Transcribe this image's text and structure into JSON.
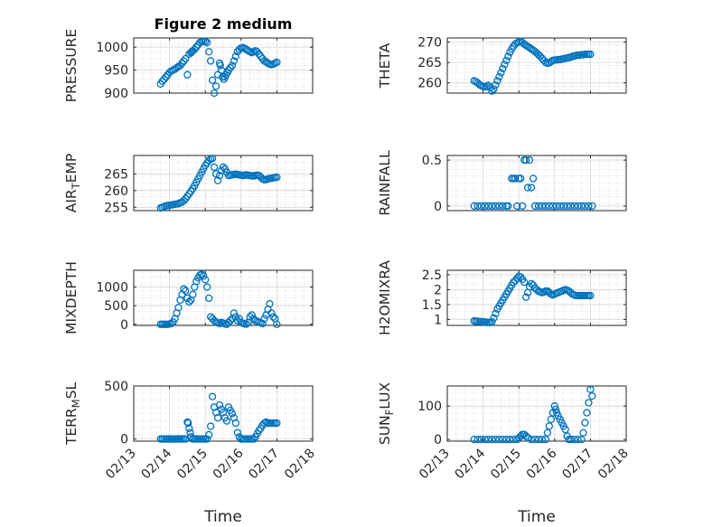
{
  "figure_title": "Figure 2 medium",
  "colors": {
    "marker": "#0072bd",
    "axis": "#262626",
    "grid": "#c8c8c8"
  },
  "chart_data": [
    {
      "type": "scatter",
      "ylabel": "PRESSURE",
      "xlabel": "",
      "title": "Figure 2 medium",
      "xlim": [
        0,
        5
      ],
      "ylim": [
        900,
        1020
      ],
      "yticks": [
        900,
        950,
        1000
      ],
      "ytick_labels": [
        "900",
        "950",
        "1000"
      ],
      "grid": true,
      "x": [
        0.75,
        0.8,
        0.85,
        0.9,
        0.95,
        1.0,
        1.05,
        1.1,
        1.15,
        1.2,
        1.25,
        1.3,
        1.35,
        1.4,
        1.45,
        1.5,
        1.55,
        1.6,
        1.62,
        1.65,
        1.7,
        1.75,
        1.8,
        1.85,
        1.9,
        1.95,
        2.0,
        2.05,
        2.1,
        2.15,
        2.2,
        2.25,
        2.3,
        2.35,
        2.4,
        2.42,
        2.45,
        2.48,
        2.52,
        2.55,
        2.58,
        2.62,
        2.65,
        2.7,
        2.75,
        2.8,
        2.85,
        2.9,
        2.95,
        3.0,
        3.05,
        3.1,
        3.15,
        3.2,
        3.25,
        3.3,
        3.35,
        3.4,
        3.45,
        3.5,
        3.55,
        3.6,
        3.65,
        3.7,
        3.75,
        3.8,
        3.85,
        3.9,
        3.95,
        4.0
      ],
      "y": [
        920,
        926,
        930,
        935,
        940,
        945,
        948,
        950,
        952,
        955,
        958,
        960,
        965,
        970,
        975,
        940,
        985,
        988,
        990,
        992,
        995,
        1000,
        1005,
        1010,
        1012,
        1013,
        1012,
        1010,
        990,
        970,
        928,
        900,
        915,
        940,
        965,
        960,
        950,
        935,
        930,
        935,
        940,
        945,
        950,
        955,
        960,
        970,
        980,
        990,
        995,
        998,
        999,
        997,
        995,
        992,
        990,
        988,
        990,
        992,
        990,
        985,
        980,
        975,
        970,
        968,
        965,
        963,
        962,
        963,
        965,
        967
      ]
    },
    {
      "type": "scatter",
      "ylabel": "THETA",
      "xlabel": "",
      "xlim": [
        0,
        5
      ],
      "ylim": [
        257.5,
        271
      ],
      "yticks": [
        260,
        265,
        270
      ],
      "ytick_labels": [
        "260",
        "265",
        "270"
      ],
      "grid": true,
      "x": [
        0.75,
        0.8,
        0.85,
        0.9,
        0.95,
        1.0,
        1.05,
        1.1,
        1.15,
        1.2,
        1.25,
        1.3,
        1.35,
        1.4,
        1.45,
        1.5,
        1.55,
        1.6,
        1.65,
        1.7,
        1.75,
        1.8,
        1.85,
        1.9,
        1.95,
        2.0,
        2.05,
        2.1,
        2.15,
        2.2,
        2.25,
        2.3,
        2.35,
        2.4,
        2.45,
        2.5,
        2.55,
        2.6,
        2.65,
        2.7,
        2.75,
        2.8,
        2.85,
        2.9,
        2.95,
        3.0,
        3.05,
        3.1,
        3.15,
        3.2,
        3.25,
        3.3,
        3.35,
        3.4,
        3.45,
        3.5,
        3.55,
        3.6,
        3.65,
        3.7,
        3.75,
        3.8,
        3.85,
        3.9,
        3.95,
        4.0
      ],
      "y": [
        260.5,
        260.3,
        260,
        259.6,
        259.3,
        259.1,
        259,
        259.2,
        259.4,
        258.8,
        258,
        258.5,
        259.5,
        260.5,
        261.5,
        262.5,
        263.5,
        264.5,
        265.5,
        266.5,
        267.5,
        268.3,
        269,
        269.5,
        269.8,
        270,
        270.2,
        269.9,
        269.5,
        269.2,
        268.9,
        268.6,
        268.3,
        268,
        267.7,
        267.3,
        266.9,
        266.5,
        266,
        265.5,
        265,
        264.8,
        264.9,
        265.2,
        265.5,
        265.6,
        265.6,
        265.7,
        265.7,
        265.8,
        265.9,
        266,
        266.1,
        266.2,
        266.3,
        266.5,
        266.6,
        266.7,
        266.8,
        266.8,
        266.9,
        266.9,
        267,
        267,
        267,
        267
      ]
    },
    {
      "type": "scatter",
      "ylabel": "AIR_TEMP",
      "xlabel": "",
      "xlim": [
        0,
        5
      ],
      "ylim": [
        254,
        270.5
      ],
      "yticks": [
        255,
        260,
        265
      ],
      "ytick_labels": [
        "255",
        "260",
        "265"
      ],
      "grid": true,
      "x": [
        0.75,
        0.8,
        0.85,
        0.9,
        0.95,
        1.0,
        1.05,
        1.1,
        1.15,
        1.2,
        1.25,
        1.3,
        1.35,
        1.4,
        1.45,
        1.5,
        1.55,
        1.6,
        1.65,
        1.7,
        1.75,
        1.8,
        1.85,
        1.9,
        1.95,
        2.0,
        2.05,
        2.1,
        2.15,
        2.2,
        2.25,
        2.3,
        2.35,
        2.4,
        2.45,
        2.5,
        2.55,
        2.6,
        2.65,
        2.7,
        2.75,
        2.8,
        2.85,
        2.9,
        2.95,
        3.0,
        3.05,
        3.1,
        3.15,
        3.2,
        3.25,
        3.3,
        3.35,
        3.4,
        3.45,
        3.5,
        3.55,
        3.6,
        3.65,
        3.7,
        3.75,
        3.8,
        3.85,
        3.9,
        3.95,
        4.0
      ],
      "y": [
        254.8,
        255,
        255.2,
        255.4,
        255.5,
        255.6,
        255.7,
        255.8,
        255.9,
        256,
        256.1,
        256.3,
        256.6,
        257,
        257.6,
        258.3,
        259,
        259.8,
        260.6,
        261.5,
        262.5,
        263.5,
        264.5,
        265.5,
        266.5,
        267.5,
        268.3,
        269,
        269.4,
        269.6,
        267,
        265,
        263,
        264.5,
        266,
        267,
        266.5,
        265.5,
        264.5,
        264.6,
        264.7,
        264.8,
        264.9,
        264.8,
        264.7,
        264.6,
        264.5,
        264.6,
        264.7,
        264.6,
        264.5,
        264.4,
        264.4,
        264.5,
        264.6,
        264.5,
        264,
        263.5,
        263.2,
        263.3,
        263.5,
        263.6,
        263.7,
        263.8,
        263.9,
        264
      ]
    },
    {
      "type": "scatter",
      "ylabel": "RAINFALL",
      "xlabel": "",
      "xlim": [
        0,
        5
      ],
      "ylim": [
        -0.05,
        0.55
      ],
      "yticks": [
        0,
        0.5
      ],
      "ytick_labels": [
        "0",
        "0.5"
      ],
      "grid": true,
      "x": [
        0.75,
        0.85,
        0.95,
        1.05,
        1.15,
        1.25,
        1.35,
        1.45,
        1.55,
        1.65,
        1.7,
        1.8,
        1.85,
        1.9,
        1.95,
        2.0,
        2.05,
        2.1,
        2.15,
        2.2,
        2.25,
        2.3,
        2.35,
        2.4,
        2.45,
        2.55,
        2.65,
        2.75,
        2.85,
        2.95,
        3.05,
        3.15,
        3.25,
        3.35,
        3.45,
        3.55,
        3.65,
        3.75,
        3.85,
        3.95,
        4.05
      ],
      "y": [
        0,
        0,
        0,
        0,
        0,
        0,
        0,
        0,
        0,
        0,
        0,
        0.3,
        0.3,
        0.3,
        0,
        0.3,
        0.3,
        0,
        0.5,
        0.5,
        0.2,
        0.5,
        0.2,
        0.3,
        0,
        0,
        0,
        0,
        0,
        0,
        0,
        0,
        0,
        0,
        0,
        0,
        0,
        0,
        0,
        0,
        0
      ]
    },
    {
      "type": "scatter",
      "ylabel": "MIXDEPTH",
      "xlabel": "",
      "xlim": [
        0,
        5
      ],
      "ylim": [
        -30,
        1450
      ],
      "yticks": [
        0,
        500,
        1000
      ],
      "ytick_labels": [
        "0",
        "500",
        "1000"
      ],
      "grid": true,
      "x": [
        0.75,
        0.8,
        0.85,
        0.9,
        0.95,
        1.0,
        1.05,
        1.1,
        1.15,
        1.2,
        1.25,
        1.3,
        1.35,
        1.4,
        1.45,
        1.5,
        1.55,
        1.6,
        1.65,
        1.7,
        1.75,
        1.8,
        1.85,
        1.9,
        1.95,
        2.0,
        2.05,
        2.1,
        2.15,
        2.2,
        2.25,
        2.3,
        2.35,
        2.4,
        2.45,
        2.5,
        2.55,
        2.6,
        2.65,
        2.7,
        2.75,
        2.8,
        2.85,
        2.9,
        2.95,
        3.0,
        3.05,
        3.1,
        3.15,
        3.2,
        3.25,
        3.3,
        3.35,
        3.4,
        3.45,
        3.5,
        3.55,
        3.6,
        3.65,
        3.7,
        3.75,
        3.8,
        3.85,
        3.9,
        3.95,
        4.0
      ],
      "y": [
        0,
        0,
        0,
        0,
        0,
        10,
        20,
        60,
        150,
        300,
        450,
        650,
        800,
        950,
        900,
        700,
        600,
        650,
        800,
        1000,
        1150,
        1250,
        1320,
        1340,
        1300,
        1200,
        1000,
        700,
        200,
        150,
        100,
        60,
        40,
        20,
        50,
        30,
        10,
        0,
        50,
        100,
        150,
        300,
        200,
        100,
        150,
        50,
        30,
        10,
        5,
        50,
        200,
        250,
        150,
        100,
        80,
        60,
        40,
        20,
        150,
        250,
        400,
        550,
        300,
        200,
        150,
        0
      ]
    },
    {
      "type": "scatter",
      "ylabel": "H2OMIXRA",
      "xlabel": "",
      "xlim": [
        0,
        5
      ],
      "ylim": [
        0.8,
        2.65
      ],
      "yticks": [
        1,
        1.5,
        2,
        2.5
      ],
      "ytick_labels": [
        "1",
        "1.5",
        "2",
        "2.5"
      ],
      "grid": true,
      "x": [
        0.75,
        0.8,
        0.85,
        0.9,
        0.95,
        1.0,
        1.05,
        1.1,
        1.15,
        1.2,
        1.25,
        1.3,
        1.35,
        1.4,
        1.45,
        1.5,
        1.55,
        1.6,
        1.65,
        1.7,
        1.75,
        1.8,
        1.85,
        1.9,
        1.95,
        2.0,
        2.05,
        2.1,
        2.15,
        2.2,
        2.25,
        2.3,
        2.35,
        2.4,
        2.45,
        2.5,
        2.55,
        2.6,
        2.65,
        2.7,
        2.75,
        2.8,
        2.85,
        2.9,
        2.95,
        3.0,
        3.05,
        3.1,
        3.15,
        3.2,
        3.25,
        3.3,
        3.35,
        3.4,
        3.45,
        3.5,
        3.55,
        3.6,
        3.65,
        3.7,
        3.75,
        3.8,
        3.85,
        3.9,
        3.95,
        4.0
      ],
      "y": [
        0.95,
        0.94,
        0.94,
        0.93,
        0.93,
        0.92,
        0.92,
        0.9,
        0.9,
        0.9,
        0.92,
        1.05,
        1.2,
        1.35,
        1.45,
        1.55,
        1.65,
        1.75,
        1.85,
        1.95,
        2.05,
        2.15,
        2.25,
        2.3,
        2.38,
        2.45,
        2.42,
        2.35,
        2.25,
        1.75,
        1.9,
        2.1,
        2.2,
        2.15,
        2.05,
        2.0,
        1.95,
        1.92,
        1.9,
        1.92,
        1.95,
        1.95,
        1.9,
        1.85,
        1.82,
        1.85,
        1.88,
        1.9,
        1.93,
        1.95,
        1.98,
        2.0,
        1.98,
        1.95,
        1.9,
        1.85,
        1.82,
        1.8,
        1.8,
        1.8,
        1.8,
        1.8,
        1.8,
        1.8,
        1.8,
        1.8
      ]
    },
    {
      "type": "scatter",
      "ylabel": "TERR_MSL",
      "xlabel": "Time",
      "xlim": [
        0,
        5
      ],
      "ylim": [
        -20,
        500
      ],
      "yticks": [
        0,
        500
      ],
      "ytick_labels": [
        "0",
        "500"
      ],
      "xticks": [
        0,
        1,
        2,
        3,
        4,
        5
      ],
      "xtick_labels": [
        "02/13",
        "02/14",
        "02/15",
        "02/16",
        "02/17",
        "02/18"
      ],
      "grid": true,
      "x": [
        0.75,
        0.8,
        0.85,
        0.9,
        0.95,
        1.0,
        1.05,
        1.1,
        1.15,
        1.2,
        1.25,
        1.3,
        1.35,
        1.4,
        1.45,
        1.5,
        1.52,
        1.55,
        1.58,
        1.6,
        1.65,
        1.7,
        1.75,
        1.8,
        1.85,
        1.9,
        1.95,
        2.0,
        2.05,
        2.1,
        2.15,
        2.2,
        2.25,
        2.3,
        2.35,
        2.4,
        2.45,
        2.5,
        2.55,
        2.6,
        2.65,
        2.7,
        2.75,
        2.8,
        2.85,
        2.9,
        2.95,
        3.0,
        3.05,
        3.1,
        3.15,
        3.2,
        3.25,
        3.3,
        3.35,
        3.4,
        3.45,
        3.5,
        3.55,
        3.6,
        3.65,
        3.7,
        3.75,
        3.8,
        3.85,
        3.9,
        3.95,
        4.0
      ],
      "y": [
        0,
        0,
        0,
        0,
        0,
        0,
        0,
        0,
        0,
        0,
        0,
        0,
        0,
        0,
        0,
        160,
        150,
        100,
        60,
        20,
        0,
        0,
        0,
        0,
        0,
        0,
        0,
        0,
        0,
        40,
        120,
        400,
        300,
        250,
        200,
        320,
        280,
        250,
        200,
        170,
        300,
        270,
        240,
        200,
        150,
        60,
        20,
        0,
        0,
        0,
        0,
        0,
        0,
        0,
        0,
        20,
        50,
        80,
        100,
        130,
        150,
        160,
        150,
        150,
        150,
        150,
        150,
        150
      ]
    },
    {
      "type": "scatter",
      "ylabel": "SUN_FLUX",
      "xlabel": "Time",
      "xlim": [
        0,
        5
      ],
      "ylim": [
        -5,
        160
      ],
      "yticks": [
        0,
        100
      ],
      "ytick_labels": [
        "0",
        "100"
      ],
      "xticks": [
        0,
        1,
        2,
        3,
        4,
        5
      ],
      "xtick_labels": [
        "02/13",
        "02/14",
        "02/15",
        "02/16",
        "02/17",
        "02/18"
      ],
      "grid": true,
      "x": [
        0.75,
        0.85,
        0.95,
        1.05,
        1.15,
        1.25,
        1.35,
        1.45,
        1.55,
        1.65,
        1.75,
        1.85,
        1.95,
        2.0,
        2.05,
        2.1,
        2.15,
        2.2,
        2.25,
        2.35,
        2.45,
        2.55,
        2.65,
        2.75,
        2.8,
        2.85,
        2.9,
        2.95,
        3.0,
        3.03,
        3.06,
        3.1,
        3.15,
        3.2,
        3.25,
        3.3,
        3.35,
        3.4,
        3.45,
        3.55,
        3.65,
        3.75,
        3.8,
        3.85,
        3.9,
        3.95,
        4.0,
        4.05
      ],
      "y": [
        0,
        0,
        0,
        0,
        0,
        0,
        0,
        0,
        0,
        0,
        0,
        0,
        0,
        5,
        10,
        15,
        15,
        10,
        5,
        0,
        0,
        0,
        0,
        0,
        20,
        40,
        60,
        80,
        100,
        90,
        80,
        70,
        60,
        50,
        40,
        30,
        10,
        0,
        0,
        0,
        0,
        0,
        20,
        50,
        80,
        110,
        150,
        130
      ]
    }
  ]
}
